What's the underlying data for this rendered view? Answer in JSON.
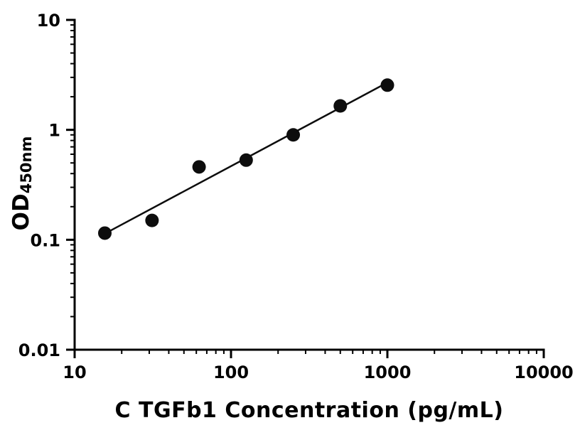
{
  "chart_data": {
    "type": "scatter",
    "title": "",
    "xlabel": "C TGFb1 Concentration (pg/mL)",
    "ylabel": "OD",
    "ylabel_subscript": "450nm",
    "xscale": "log",
    "yscale": "log",
    "xlim": [
      10,
      10000
    ],
    "ylim": [
      0.01,
      10
    ],
    "x_ticks": [
      10,
      100,
      1000,
      10000
    ],
    "x_tick_labels": [
      "10",
      "100",
      "1000",
      "10000"
    ],
    "y_ticks": [
      0.01,
      0.1,
      1,
      10
    ],
    "y_tick_labels": [
      "0.01",
      "0.1",
      "1",
      "10"
    ],
    "minor_log_ticks": true,
    "grid": false,
    "legend": "none",
    "series": [
      {
        "x": [
          15.6,
          31.25,
          62.5,
          125,
          250,
          500,
          1000
        ],
        "y": [
          0.115,
          0.15,
          0.46,
          0.53,
          0.9,
          1.65,
          2.55
        ]
      }
    ],
    "fit_line": {
      "type": "linear-regression-in-log-log-space",
      "from_x": 15.6,
      "to_x": 1000
    },
    "marker_color": "#0d0d0d",
    "line_color": "#0d0d0d",
    "axis_color": "#000000"
  }
}
